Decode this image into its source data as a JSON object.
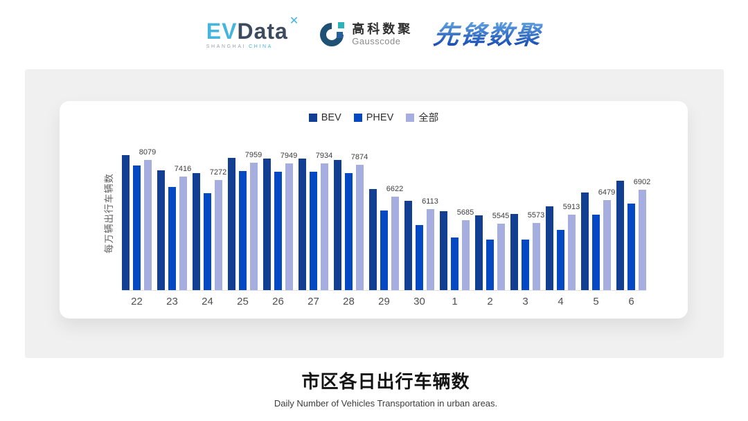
{
  "header": {
    "evdata": {
      "ev": "EV",
      "data": "Data",
      "mark": "✕",
      "tagline_left": "SHANGHAI",
      "tagline_right": "CHINA"
    },
    "gausscode": {
      "name_cn": "高科数聚",
      "name_en": "Gausscode"
    },
    "xianfeng": {
      "name": "先锋数聚"
    }
  },
  "chart_data": {
    "type": "bar",
    "title": "市区各日出行车辆数",
    "subtitle": "Daily Number of Vehicles Transportation in urban areas.",
    "ylabel": "每万辆出行车辆数",
    "xlabel": "",
    "categories": [
      "22",
      "23",
      "24",
      "25",
      "26",
      "27",
      "28",
      "29",
      "30",
      "1",
      "2",
      "3",
      "4",
      "5",
      "6"
    ],
    "series": [
      {
        "name": "BEV",
        "color": "#123f92",
        "values": [
          8265,
          7670,
          7560,
          8165,
          8145,
          8145,
          8065,
          6935,
          6460,
          6050,
          5880,
          5940,
          6245,
          6790,
          7240
        ]
      },
      {
        "name": "PHEV",
        "color": "#0548c4",
        "values": [
          7870,
          7000,
          6770,
          7640,
          7600,
          7620,
          7560,
          6060,
          5480,
          5005,
          4915,
          4905,
          5310,
          5905,
          6355
        ]
      },
      {
        "name": "全部",
        "color": "#a5aede",
        "labeled": true,
        "values": [
          8079,
          7416,
          7272,
          7959,
          7949,
          7934,
          7874,
          6622,
          6113,
          5685,
          5545,
          5573,
          5913,
          6479,
          6902
        ]
      }
    ],
    "data_labels": [
      8079,
      7416,
      7272,
      7959,
      7949,
      7934,
      7874,
      6622,
      6113,
      5685,
      5545,
      5573,
      5913,
      6479,
      6902
    ],
    "ylim": [
      2900,
      8600
    ],
    "grid": false,
    "legend_position": "top",
    "colors": {
      "axis_line": "#e2e2e2",
      "tick_text": "#4f4f4f",
      "label_text": "#3d3d3d",
      "panel_bg": "#f0f0f1",
      "card_bg": "#ffffff"
    }
  }
}
